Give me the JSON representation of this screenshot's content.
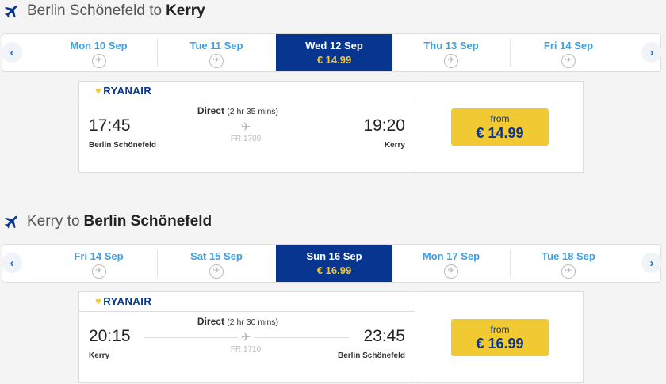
{
  "journeys": [
    {
      "from": "Berlin Schönefeld",
      "to_word": "to",
      "to": "Kerry",
      "dates": [
        {
          "label": "Mon 10 Sep"
        },
        {
          "label": "Tue 11 Sep"
        },
        {
          "label": "Wed 12 Sep",
          "price": "€ 14.99",
          "selected": true
        },
        {
          "label": "Thu 13 Sep"
        },
        {
          "label": "Fri 14 Sep"
        }
      ],
      "flight": {
        "airline": "RYANAIR",
        "type": "Direct",
        "duration": "(2 hr 35 mins)",
        "depart": "17:45",
        "arrive": "19:20",
        "origin": "Berlin Schönefeld",
        "destination": "Kerry",
        "number": "FR 1709",
        "from_label": "from",
        "price": "€ 14.99"
      }
    },
    {
      "from": "Kerry",
      "to_word": "to",
      "to": "Berlin Schönefeld",
      "dates": [
        {
          "label": "Fri 14 Sep"
        },
        {
          "label": "Sat 15 Sep"
        },
        {
          "label": "Sun 16 Sep",
          "price": "€ 16.99",
          "selected": true
        },
        {
          "label": "Mon 17 Sep"
        },
        {
          "label": "Tue 18 Sep"
        }
      ],
      "flight": {
        "airline": "RYANAIR",
        "type": "Direct",
        "duration": "(2 hr 30 mins)",
        "depart": "20:15",
        "arrive": "23:45",
        "origin": "Kerry",
        "destination": "Berlin Schönefeld",
        "number": "FR 1710",
        "from_label": "from",
        "price": "€ 16.99"
      }
    }
  ],
  "icons": {
    "nav_prev": "‹",
    "nav_next": "›",
    "no_flights": "no-flights-icon",
    "plane": "plane-icon"
  },
  "colors": {
    "brand": "#073590",
    "price": "#f1c933",
    "date": "#3da0e6"
  }
}
